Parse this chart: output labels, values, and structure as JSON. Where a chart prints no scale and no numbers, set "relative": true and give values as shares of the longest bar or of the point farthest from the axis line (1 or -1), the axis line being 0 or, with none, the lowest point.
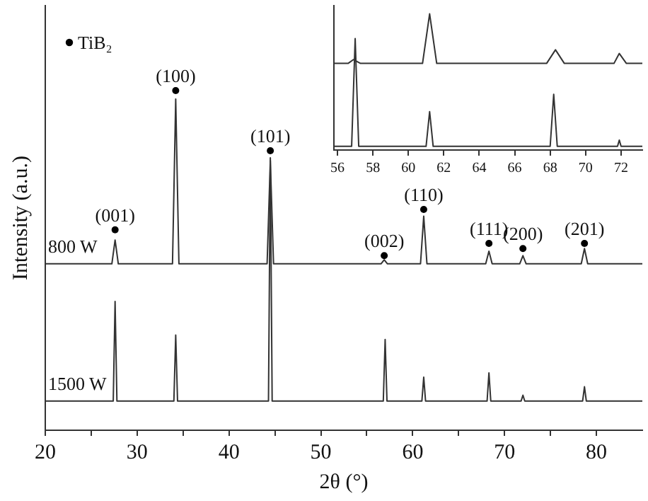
{
  "chart_data": [
    {
      "type": "line",
      "xlabel": "2θ (°)",
      "ylabel": "Intensity (a.u.)",
      "relative": true,
      "legend": "top left",
      "xlim": [
        20,
        85
      ],
      "xticks": [
        20,
        {
          "value": 25,
          "label": null
        },
        30,
        {
          "value": 35,
          "label": null
        },
        40,
        {
          "value": 45,
          "label": null
        },
        50,
        {
          "value": 55,
          "label": null
        },
        60,
        {
          "value": 65,
          "label": null
        },
        70,
        {
          "value": 75,
          "label": null
        },
        80
      ],
      "series": [
        {
          "name": "800 W",
          "color": "#333333",
          "x": [
            20,
            27.25,
            27.6,
            27.95,
            33.85,
            34.2,
            34.55,
            44.15,
            44.5,
            44.85,
            56.55,
            56.9,
            57.25,
            60.85,
            61.2,
            61.55,
            67.95,
            68.3,
            68.65,
            71.65,
            72.0,
            72.35,
            78.35,
            78.7,
            79.05,
            85
          ],
          "values": [
            0.49,
            0.49,
            0.56,
            0.49,
            0.49,
            0.975,
            0.49,
            0.49,
            0.794,
            0.49,
            0.49,
            0.502,
            0.49,
            0.49,
            0.63,
            0.49,
            0.49,
            0.527,
            0.49,
            0.49,
            0.514,
            0.49,
            0.49,
            0.535,
            0.49,
            0.49
          ]
        },
        {
          "name": "1500 W",
          "color": "#333333",
          "x": [
            20,
            27.4,
            27.6,
            27.8,
            34.0,
            34.2,
            34.4,
            44.3,
            44.5,
            44.7,
            56.8,
            57.0,
            57.2,
            61.0,
            61.2,
            61.4,
            68.1,
            68.3,
            68.5,
            71.8,
            72.0,
            72.2,
            78.5,
            78.7,
            78.9,
            85
          ],
          "values": [
            0.086,
            0.086,
            0.379,
            0.086,
            0.086,
            0.28,
            0.086,
            0.086,
            0.802,
            0.086,
            0.086,
            0.267,
            0.086,
            0.086,
            0.156,
            0.086,
            0.086,
            0.169,
            0.086,
            0.086,
            0.103,
            0.086,
            0.086,
            0.128,
            0.086,
            0.086
          ]
        },
        {
          "name": "TiB₂",
          "type": "scatter",
          "marker": "circle",
          "color": "#000000",
          "x": [
            27.6,
            34.2,
            44.5,
            56.9,
            61.2,
            68.3,
            72.0,
            78.7
          ],
          "values": [
            0.59,
            1.0,
            0.823,
            0.514,
            0.65,
            0.55,
            0.535,
            0.55
          ]
        }
      ],
      "annotations": [
        {
          "text": "(001)",
          "x": 27.6,
          "y": 0.59
        },
        {
          "text": "(100)",
          "x": 34.2,
          "y": 1.0
        },
        {
          "text": "(101)",
          "x": 44.5,
          "y": 0.823
        },
        {
          "text": "(002)",
          "x": 56.9,
          "y": 0.514
        },
        {
          "text": "(110)",
          "x": 61.2,
          "y": 0.65
        },
        {
          "text": "(111)",
          "x": 68.3,
          "y": 0.55
        },
        {
          "text": "(200)",
          "x": 72.0,
          "y": 0.535
        },
        {
          "text": "(201)",
          "x": 78.7,
          "y": 0.55
        }
      ]
    },
    {
      "type": "line",
      "relative": true,
      "xlim": [
        55.8,
        73.2
      ],
      "xticks": [
        56,
        58,
        60,
        62,
        64,
        66,
        68,
        70,
        72
      ],
      "series": [
        {
          "color": "#333333",
          "x": [
            55.8,
            56.6,
            56.9,
            57.3,
            60.8,
            61.2,
            61.6,
            67.8,
            68.3,
            68.8,
            71.6,
            71.9,
            72.3,
            73.2
          ],
          "values": [
            0.636,
            0.636,
            0.664,
            0.636,
            0.636,
            1.0,
            0.636,
            0.636,
            0.736,
            0.636,
            0.636,
            0.709,
            0.636,
            0.636
          ]
        },
        {
          "color": "#333333",
          "x": [
            55.8,
            56.8,
            57.0,
            57.2,
            61.0,
            61.2,
            61.4,
            68.0,
            68.2,
            68.4,
            71.8,
            71.9,
            72.0,
            73.2
          ],
          "values": [
            0.027,
            0.027,
            0.818,
            0.027,
            0.027,
            0.282,
            0.027,
            0.027,
            0.409,
            0.027,
            0.027,
            0.073,
            0.027,
            0.027
          ]
        }
      ]
    }
  ]
}
